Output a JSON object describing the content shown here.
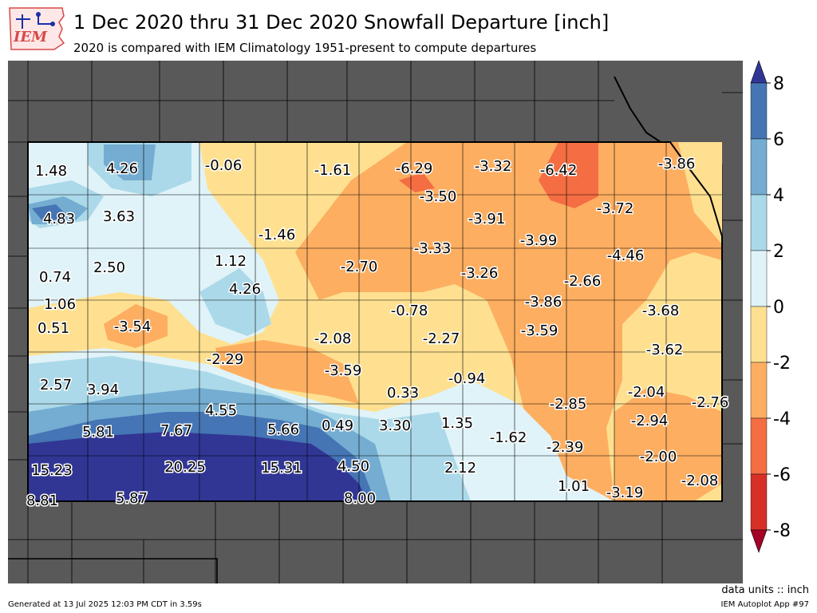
{
  "header": {
    "logo_text": "IEM",
    "title": "1 Dec 2020 thru 31 Dec 2020 Snowfall Departure [inch]",
    "subtitle": "2020 is compared with IEM Climatology 1951-present to compute departures"
  },
  "footer": {
    "units": "data units :: inch",
    "generated": "Generated at 13 Jul 2025 12:03 PM CDT in 3.59s",
    "app": "IEM Autoplot App #97"
  },
  "colorbar": {
    "ticks": [
      "8",
      "6",
      "4",
      "2",
      "0",
      "-2",
      "-4",
      "-6",
      "-8"
    ],
    "colors": [
      "#313695",
      "#4575b4",
      "#74add1",
      "#abd9e9",
      "#e0f3f8",
      "#fee090",
      "#fdae61",
      "#f46d43",
      "#d73027",
      "#a50026"
    ]
  },
  "colors": {
    "outside": "#595959",
    "land": "#ffffff"
  },
  "map_values": [
    {
      "label": "1.48"
    },
    {
      "label": "4.26"
    },
    {
      "label": "-0.06"
    },
    {
      "label": "-1.61"
    },
    {
      "label": "-6.29"
    },
    {
      "label": "-3.32"
    },
    {
      "label": "-6.42"
    },
    {
      "label": "-3.86"
    },
    {
      "label": "-3.50"
    },
    {
      "label": "4.83"
    },
    {
      "label": "3.63"
    },
    {
      "label": "-3.91"
    },
    {
      "label": "-3.72"
    },
    {
      "label": "-1.46"
    },
    {
      "label": "-3.99"
    },
    {
      "label": "-3.33"
    },
    {
      "label": "-4.46"
    },
    {
      "label": "0.74"
    },
    {
      "label": "2.50"
    },
    {
      "label": "1.12"
    },
    {
      "label": "-2.70"
    },
    {
      "label": "-3.26"
    },
    {
      "label": "-2.66"
    },
    {
      "label": "4.26"
    },
    {
      "label": "1.06"
    },
    {
      "label": "-3.86"
    },
    {
      "label": "-0.78"
    },
    {
      "label": "-3.68"
    },
    {
      "label": "0.51"
    },
    {
      "label": "-3.54"
    },
    {
      "label": "-2.08"
    },
    {
      "label": "-3.59"
    },
    {
      "label": "-2.27"
    },
    {
      "label": "-3.62"
    },
    {
      "label": "-2.29"
    },
    {
      "label": "-3.59"
    },
    {
      "label": "-0.94"
    },
    {
      "label": "2.57"
    },
    {
      "label": "3.94"
    },
    {
      "label": "0.33"
    },
    {
      "label": "-2.04"
    },
    {
      "label": "-2.85"
    },
    {
      "label": "-2.76"
    },
    {
      "label": "4.55"
    },
    {
      "label": "-2.94"
    },
    {
      "label": "5.81"
    },
    {
      "label": "7.67"
    },
    {
      "label": "5.66"
    },
    {
      "label": "0.49"
    },
    {
      "label": "3.30"
    },
    {
      "label": "1.35"
    },
    {
      "label": "-1.62"
    },
    {
      "label": "-2.39"
    },
    {
      "label": "-2.00"
    },
    {
      "label": "15.23"
    },
    {
      "label": "20.25"
    },
    {
      "label": "15.31"
    },
    {
      "label": "4.50"
    },
    {
      "label": "2.12"
    },
    {
      "label": "1.01"
    },
    {
      "label": "-2.08"
    },
    {
      "label": "-3.19"
    },
    {
      "label": "8.81"
    },
    {
      "label": "5.87"
    },
    {
      "label": "8.00"
    }
  ]
}
